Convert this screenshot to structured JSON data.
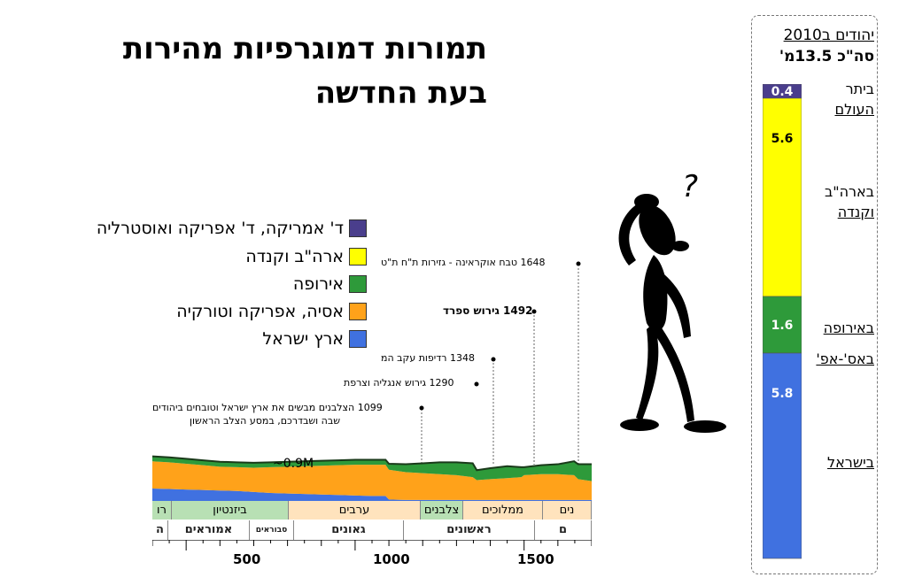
{
  "title_line1": "תמורות דמוגרפיות מהירות",
  "title_line2": "בעת החדשה",
  "legend": [
    {
      "label": "ד' אמריקה, ד' אפריקה ואוסטרליה",
      "color": "#4a3e8c"
    },
    {
      "label": "ארה\"ב וקנדה",
      "color": "#ffff00"
    },
    {
      "label": "אירופה",
      "color": "#2e9a3a"
    },
    {
      "label": "אסיה, אפריקה וטורקיה",
      "color": "#ffa21a"
    },
    {
      "label": "ארץ ישראל",
      "color": "#4071e0"
    }
  ],
  "annotations": {
    "a1648": "1648 טבח אוקראינה - גזירות ת\"ח ת\"ט",
    "a1492": "1492 גירוש ספרד",
    "a1348": "1348 רדיפות עקב המ",
    "a1290": "1290 גירוש אנגליה וצרפת",
    "a1099_l1": "1099 הצלבנים מבשים את ארץ ישראל וטובחים ביהודים",
    "a1099_l2": "שבה ושבדרכם, במסע הצלב הראשון",
    "pop_label": "~0.9M"
  },
  "eras": [
    {
      "label": "רו",
      "color": "#b8e0b4"
    },
    {
      "label": "ביזנטיון",
      "color": "#b8e0b4"
    },
    {
      "label": "ערבים",
      "color": "#ffe3bd"
    },
    {
      "label": "צלבנים",
      "color": "#b8e0b4"
    },
    {
      "label": "ממלוכים",
      "color": "#ffe3bd"
    },
    {
      "label": "נים",
      "color": "#ffe3bd"
    }
  ],
  "sub_periods": [
    "ה",
    "אמוראים",
    "סבוראים",
    "גאונים",
    "ראשונים",
    "ם"
  ],
  "x_ticks": [
    "500",
    "1000",
    "1500"
  ],
  "side": {
    "heading": "יהודים ב2010",
    "total": "סה\"כ 13.5מ'",
    "labels": {
      "world1": "ביתר",
      "world2": "העולם",
      "usa1": "בארה\"ב",
      "usa2": "וקנדה",
      "europe": "באירופה",
      "asia": "באס'-אפ'",
      "israel": "בישראל"
    }
  },
  "chart_data": {
    "type": "area",
    "x": [
      400,
      450,
      500,
      550,
      600,
      650,
      700,
      750,
      800,
      850,
      900,
      950,
      1000,
      1050,
      1090,
      1100,
      1150,
      1200,
      1250,
      1300,
      1348,
      1360,
      1400,
      1450,
      1492,
      1500,
      1550,
      1600,
      1648,
      1660,
      1700
    ],
    "xlim": [
      400,
      1700
    ],
    "series": [
      {
        "name": "ארץ ישראל",
        "color": "#4071e0",
        "values": [
          0.25,
          0.24,
          0.23,
          0.22,
          0.21,
          0.2,
          0.18,
          0.16,
          0.15,
          0.14,
          0.13,
          0.12,
          0.11,
          0.1,
          0.1,
          0.03,
          0.02,
          0.02,
          0.02,
          0.02,
          0.02,
          0.02,
          0.02,
          0.02,
          0.02,
          0.02,
          0.02,
          0.02,
          0.02,
          0.02,
          0.02
        ]
      },
      {
        "name": "אסיה, אפריקה וטורקיה",
        "color": "#ffa21a",
        "values": [
          0.55,
          0.54,
          0.52,
          0.5,
          0.48,
          0.48,
          0.49,
          0.52,
          0.54,
          0.56,
          0.58,
          0.6,
          0.62,
          0.63,
          0.63,
          0.6,
          0.56,
          0.54,
          0.52,
          0.5,
          0.46,
          0.4,
          0.42,
          0.44,
          0.46,
          0.5,
          0.52,
          0.52,
          0.5,
          0.42,
          0.38
        ]
      },
      {
        "name": "אירופה",
        "color": "#2e9a3a",
        "values": [
          0.1,
          0.1,
          0.1,
          0.1,
          0.1,
          0.1,
          0.1,
          0.1,
          0.1,
          0.1,
          0.1,
          0.1,
          0.1,
          0.1,
          0.1,
          0.12,
          0.16,
          0.2,
          0.24,
          0.26,
          0.28,
          0.2,
          0.22,
          0.24,
          0.2,
          0.16,
          0.18,
          0.2,
          0.28,
          0.3,
          0.34
        ]
      }
    ],
    "annotations": [
      "1099",
      "1290",
      "1348",
      "1492",
      "1648"
    ],
    "bar_2010": {
      "categories": [
        "בישראל",
        "באירופה",
        "בארה\"ב וקנדה",
        "ביתר העולם"
      ],
      "values": [
        5.8,
        1.6,
        5.6,
        0.4
      ],
      "colors": [
        "#4071e0",
        "#2e9a3a",
        "#ffff00",
        "#4a3e8c"
      ],
      "total": 13.5
    }
  }
}
